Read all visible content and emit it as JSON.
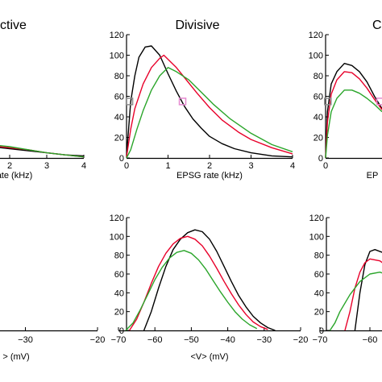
{
  "panel_titles": {
    "left": "ctive",
    "center": "Divisive",
    "right": "C"
  },
  "colors": {
    "black": "#000000",
    "red": "#e8002a",
    "green": "#2aa52a",
    "marker_gray": "#8c8c8c",
    "marker_pink": "#e58ad0"
  },
  "chart_data": [
    {
      "id": "center-top",
      "type": "line",
      "xlabel": "EPSG rate (kHz)",
      "ylabel": "",
      "xlim": [
        0,
        4
      ],
      "ylim": [
        0,
        120
      ],
      "xticks": [
        "0",
        "1",
        "2",
        "3",
        "4"
      ],
      "yticks": [
        "0",
        "20",
        "40",
        "60",
        "80",
        "100",
        "120"
      ],
      "series": [
        {
          "color": "black",
          "x": [
            0,
            0.1,
            0.2,
            0.3,
            0.45,
            0.6,
            0.8,
            1.0,
            1.2,
            1.4,
            1.6,
            1.8,
            2.0,
            2.3,
            2.6,
            3.0,
            3.5,
            4.0
          ],
          "y": [
            2,
            55,
            80,
            98,
            108,
            109,
            100,
            82,
            65,
            50,
            38,
            29,
            21,
            14,
            9,
            5,
            2,
            1
          ]
        },
        {
          "color": "red",
          "x": [
            0,
            0.1,
            0.2,
            0.4,
            0.6,
            0.8,
            0.9,
            1.0,
            1.2,
            1.4,
            1.7,
            2.0,
            2.3,
            2.7,
            3.0,
            3.5,
            4.0
          ],
          "y": [
            1,
            28,
            48,
            72,
            88,
            97,
            100,
            96,
            88,
            78,
            63,
            49,
            37,
            25,
            18,
            10,
            4
          ]
        },
        {
          "color": "green",
          "x": [
            0,
            0.1,
            0.25,
            0.4,
            0.6,
            0.8,
            1.0,
            1.2,
            1.5,
            1.8,
            2.1,
            2.5,
            3.0,
            3.5,
            4.0
          ],
          "y": [
            0,
            8,
            28,
            46,
            66,
            80,
            88,
            84,
            76,
            64,
            52,
            38,
            24,
            13,
            6
          ]
        }
      ],
      "markers": [
        {
          "shape": "square",
          "color": "marker_gray",
          "x": 0.07,
          "y": 55
        },
        {
          "shape": "square",
          "color": "marker_pink",
          "x": 1.35,
          "y": 55
        }
      ]
    },
    {
      "id": "center-bottom",
      "type": "line",
      "xlabel": "<V> (mV)",
      "ylabel": "",
      "xlim": [
        -70,
        -20
      ],
      "ylim": [
        0,
        120
      ],
      "xticks": [
        "−70",
        "−60",
        "−50",
        "−40",
        "−30",
        "−20"
      ],
      "yticks": [
        "0",
        "20",
        "40",
        "60",
        "80",
        "100",
        "120"
      ],
      "series": [
        {
          "color": "black",
          "x": [
            -63,
            -61,
            -59,
            -57,
            -55,
            -53,
            -51,
            -49,
            -47,
            -45,
            -43,
            -41,
            -39,
            -37,
            -35,
            -33,
            -31,
            -29,
            -27
          ],
          "y": [
            0,
            20,
            45,
            68,
            86,
            97,
            104,
            107,
            105,
            97,
            84,
            68,
            52,
            37,
            25,
            15,
            8,
            3,
            0
          ]
        },
        {
          "color": "red",
          "x": [
            -67,
            -65,
            -63,
            -61,
            -59,
            -57,
            -55,
            -53,
            -51,
            -49,
            -47,
            -45,
            -43,
            -41,
            -39,
            -37,
            -35,
            -33,
            -31,
            -29
          ],
          "y": [
            0,
            12,
            30,
            50,
            68,
            82,
            92,
            98,
            100,
            97,
            90,
            79,
            66,
            52,
            39,
            27,
            17,
            9,
            4,
            1
          ]
        },
        {
          "color": "green",
          "x": [
            -68,
            -66,
            -64,
            -62,
            -60,
            -58,
            -56,
            -54,
            -52,
            -50,
            -48,
            -46,
            -44,
            -42,
            -40,
            -38,
            -36,
            -34,
            -32
          ],
          "y": [
            0,
            8,
            22,
            38,
            54,
            67,
            77,
            83,
            85,
            82,
            75,
            65,
            53,
            41,
            30,
            20,
            12,
            6,
            2
          ]
        }
      ]
    },
    {
      "id": "left-top-partial",
      "type": "line",
      "xlabel": "ate (kHz)",
      "xlim": [
        1,
        4
      ],
      "ylim": [
        0,
        120
      ],
      "xticks": [
        "2",
        "3",
        "4"
      ],
      "series": [
        {
          "color": "black",
          "x": [
            1,
            1.5,
            2,
            2.5,
            3,
            3.5,
            4
          ],
          "y": [
            12,
            11,
            9,
            7,
            5,
            3,
            2
          ]
        },
        {
          "color": "red",
          "x": [
            1,
            1.5,
            2,
            2.5,
            3,
            3.5,
            4
          ],
          "y": [
            13,
            12,
            10,
            8,
            5,
            3,
            1
          ]
        },
        {
          "color": "green",
          "x": [
            1,
            1.5,
            2,
            2.5,
            3,
            3.5,
            4
          ],
          "y": [
            14,
            13,
            11,
            8,
            5,
            3,
            1
          ]
        }
      ]
    },
    {
      "id": "left-bottom-partial",
      "type": "line",
      "xlabel": "> (mV)",
      "xlim": [
        -40,
        -20
      ],
      "ylim": [
        0,
        120
      ],
      "xticks": [
        "−30",
        "−20"
      ],
      "series": [
        {
          "color": "black",
          "x": [
            -40,
            -38,
            -36
          ],
          "y": [
            5,
            2,
            0
          ]
        },
        {
          "color": "red",
          "x": [
            -40,
            -38,
            -36
          ],
          "y": [
            6,
            3,
            1
          ]
        },
        {
          "color": "green",
          "x": [
            -40,
            -38,
            -36
          ],
          "y": [
            6,
            3,
            1
          ]
        }
      ]
    },
    {
      "id": "right-top-partial",
      "type": "line",
      "xlabel": "EP",
      "xlim": [
        0,
        1.5
      ],
      "ylim": [
        0,
        120
      ],
      "yticks": [
        "0",
        "20",
        "40",
        "60",
        "80",
        "100",
        "120"
      ],
      "xticks": [
        "0"
      ],
      "series": [
        {
          "color": "black",
          "x": [
            0,
            0.05,
            0.15,
            0.3,
            0.5,
            0.7,
            0.9,
            1.1,
            1.3,
            1.5
          ],
          "y": [
            0,
            45,
            72,
            84,
            92,
            90,
            84,
            74,
            60,
            48
          ]
        },
        {
          "color": "red",
          "x": [
            0,
            0.05,
            0.15,
            0.3,
            0.5,
            0.7,
            0.9,
            1.1,
            1.3,
            1.5
          ],
          "y": [
            0,
            35,
            62,
            76,
            84,
            83,
            77,
            68,
            57,
            47
          ]
        },
        {
          "color": "green",
          "x": [
            0,
            0.05,
            0.15,
            0.3,
            0.5,
            0.7,
            0.9,
            1.1,
            1.3,
            1.5
          ],
          "y": [
            0,
            22,
            45,
            58,
            66,
            66,
            63,
            58,
            52,
            45
          ]
        }
      ],
      "markers": [
        {
          "shape": "square",
          "color": "marker_gray",
          "x": 0.06,
          "y": 55
        },
        {
          "shape": "square",
          "color": "marker_pink",
          "x": 1.45,
          "y": 55
        }
      ]
    },
    {
      "id": "right-bottom-partial",
      "type": "line",
      "xlabel": "",
      "xlim": [
        -70,
        -50
      ],
      "ylim": [
        0,
        120
      ],
      "xticks": [
        "−70",
        "−60"
      ],
      "yticks": [
        "0",
        "20",
        "40",
        "60",
        "80",
        "100",
        "120"
      ],
      "series": [
        {
          "color": "black",
          "x": [
            -63,
            -62,
            -61,
            -60,
            -59,
            -57,
            -55,
            -53,
            -51
          ],
          "y": [
            0,
            40,
            70,
            84,
            86,
            82,
            72,
            60,
            48
          ]
        },
        {
          "color": "red",
          "x": [
            -65,
            -64,
            -63,
            -62,
            -61,
            -60,
            -58,
            -56,
            -54,
            -51
          ],
          "y": [
            0,
            20,
            45,
            62,
            72,
            76,
            74,
            66,
            56,
            44
          ]
        },
        {
          "color": "green",
          "x": [
            -68,
            -67,
            -66,
            -64,
            -62,
            -60,
            -58,
            -56,
            -54,
            -51
          ],
          "y": [
            0,
            8,
            20,
            38,
            52,
            60,
            62,
            58,
            50,
            40
          ]
        }
      ]
    }
  ]
}
